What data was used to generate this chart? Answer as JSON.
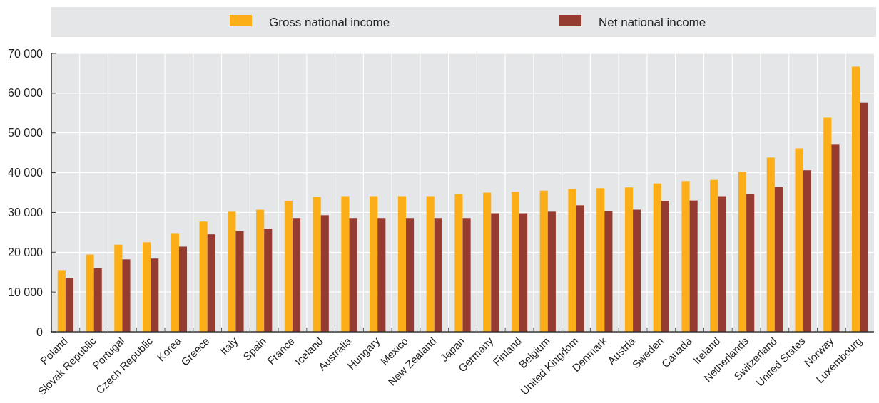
{
  "chart_data": {
    "type": "bar",
    "categories": [
      "Poland",
      "Slovak Republic",
      "Portugal",
      "Czech Republic",
      "Korea",
      "Greece",
      "Italy",
      "Spain",
      "France",
      "Iceland",
      "Australia",
      "Hungary",
      "Mexico",
      "New Zealand",
      "Japan",
      "Germany",
      "Finland",
      "Belgium",
      "United Kingdom",
      "Denmark",
      "Austria",
      "Sweden",
      "Canada",
      "Ireland",
      "Netherlands",
      "Switzerland",
      "United States",
      "Norway",
      "Luxembourg"
    ],
    "series": [
      {
        "name": "Gross national income",
        "color": "#fbae17",
        "values": [
          15500,
          19400,
          21900,
          22500,
          24800,
          27700,
          30200,
          30700,
          32900,
          33900,
          34100,
          34100,
          34100,
          34100,
          34600,
          35000,
          35200,
          35500,
          35900,
          36100,
          36300,
          37300,
          37900,
          38200,
          40200,
          43800,
          46100,
          53800,
          66700
        ]
      },
      {
        "name": "Net national income",
        "color": "#963b2f",
        "values": [
          13500,
          16000,
          18200,
          18400,
          21400,
          24500,
          25300,
          25900,
          28600,
          29300,
          28600,
          28600,
          28600,
          28600,
          28600,
          29800,
          29800,
          30200,
          31800,
          30400,
          30700,
          32900,
          33000,
          34100,
          34700,
          36400,
          40600,
          47200,
          57700
        ]
      }
    ],
    "ylim": [
      0,
      70000
    ],
    "yticks": [
      {
        "value": 0,
        "label": "0"
      },
      {
        "value": 10000,
        "label": "10 000"
      },
      {
        "value": 20000,
        "label": "20 000"
      },
      {
        "value": 30000,
        "label": "30 000"
      },
      {
        "value": 40000,
        "label": "40 000"
      },
      {
        "value": 50000,
        "label": "50 000"
      },
      {
        "value": 60000,
        "label": "60 000"
      },
      {
        "value": 70000,
        "label": "70 000"
      }
    ],
    "grid": true,
    "legend": "top"
  }
}
